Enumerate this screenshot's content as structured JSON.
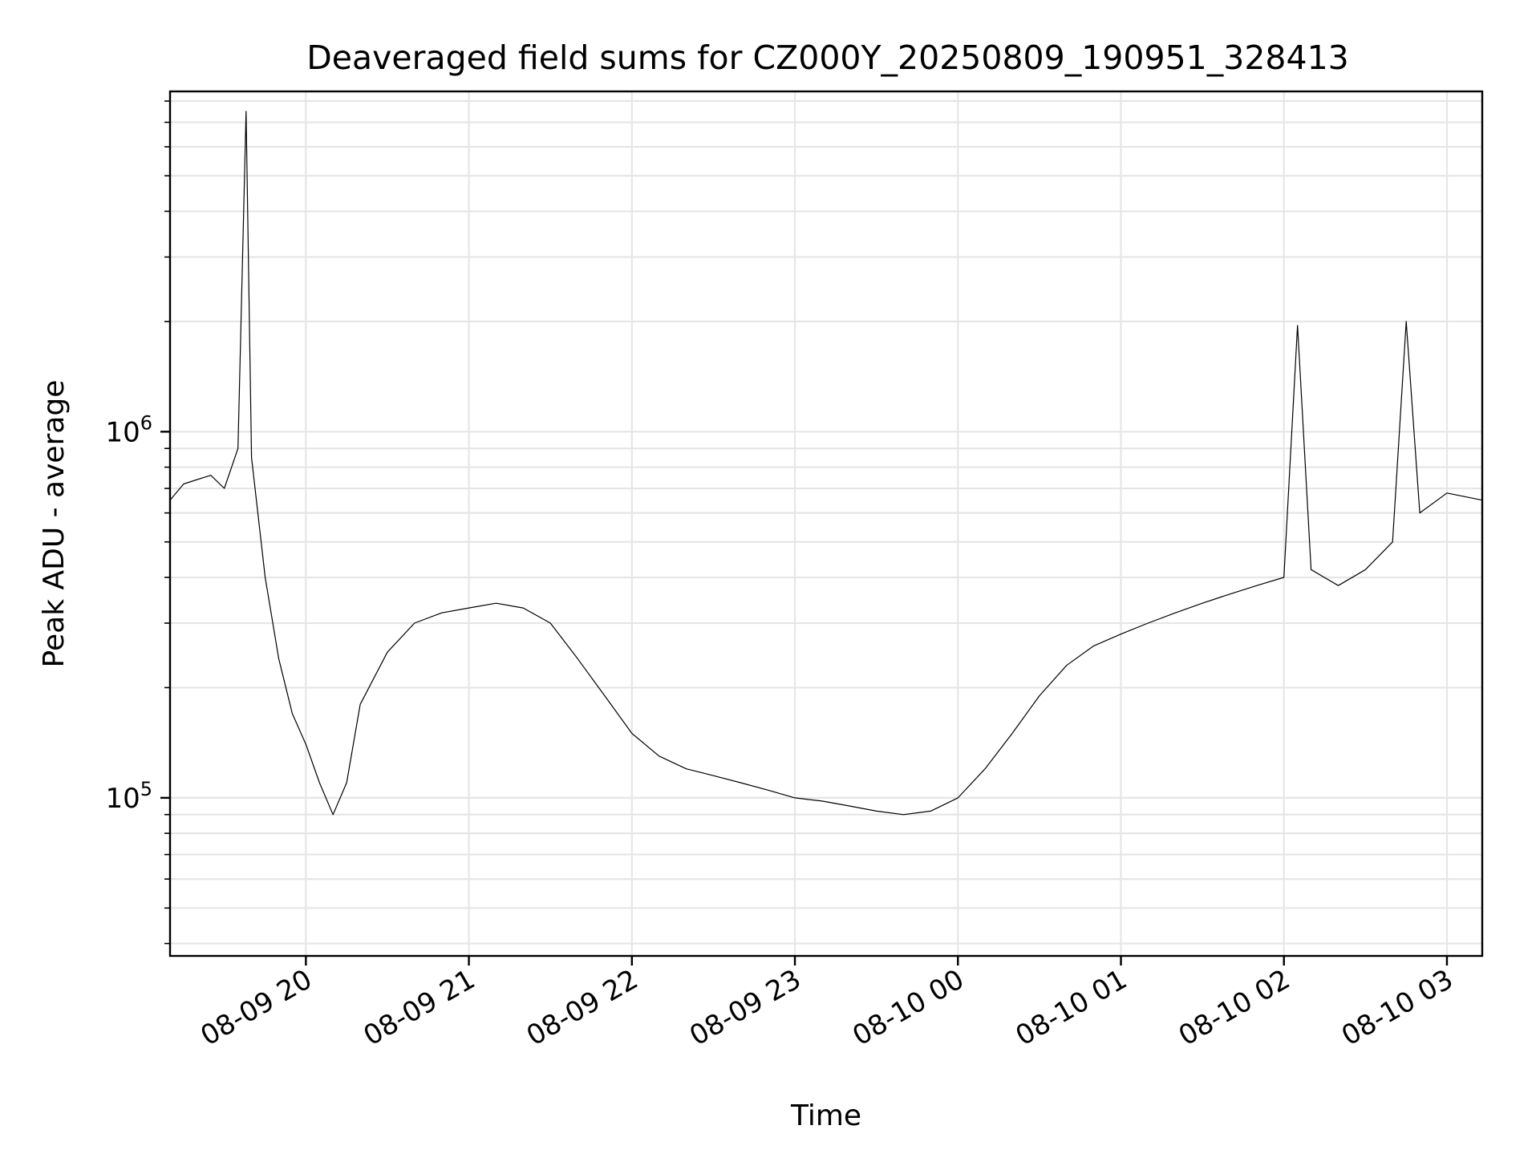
{
  "chart_data": {
    "type": "line",
    "title": "Deaveraged field sums for CZ000Y_20250809_190951_328413",
    "xlabel": "Time",
    "ylabel": "Peak ADU - average",
    "yscale": "log",
    "grid": true,
    "grid_minor_y": true,
    "line_color": "#000000",
    "xlim": [
      "2025-08-09 19:10",
      "2025-08-10 03:13"
    ],
    "ylim": [
      37000,
      8500000
    ],
    "x_ticks": [
      {
        "value": "2025-08-09 20:00",
        "label": "08-09 20"
      },
      {
        "value": "2025-08-09 21:00",
        "label": "08-09 21"
      },
      {
        "value": "2025-08-09 22:00",
        "label": "08-09 22"
      },
      {
        "value": "2025-08-09 23:00",
        "label": "08-09 23"
      },
      {
        "value": "2025-08-10 00:00",
        "label": "08-10 00"
      },
      {
        "value": "2025-08-10 01:00",
        "label": "08-10 01"
      },
      {
        "value": "2025-08-10 02:00",
        "label": "08-10 02"
      },
      {
        "value": "2025-08-10 03:00",
        "label": "08-10 03"
      }
    ],
    "y_ticks": [
      {
        "value": 100000,
        "base": "10",
        "exp": "5"
      },
      {
        "value": 1000000,
        "base": "10",
        "exp": "6"
      }
    ],
    "series": [
      {
        "points": [
          [
            "2025-08-09 19:10",
            650000
          ],
          [
            "2025-08-09 19:15",
            720000
          ],
          [
            "2025-08-09 19:20",
            740000
          ],
          [
            "2025-08-09 19:25",
            760000
          ],
          [
            "2025-08-09 19:30",
            700000
          ],
          [
            "2025-08-09 19:35",
            900000
          ],
          [
            "2025-08-09 19:38",
            7500000
          ],
          [
            "2025-08-09 19:40",
            850000
          ],
          [
            "2025-08-09 19:45",
            400000
          ],
          [
            "2025-08-09 19:50",
            240000
          ],
          [
            "2025-08-09 19:55",
            170000
          ],
          [
            "2025-08-09 20:00",
            140000
          ],
          [
            "2025-08-09 20:05",
            110000
          ],
          [
            "2025-08-09 20:10",
            90000
          ],
          [
            "2025-08-09 20:15",
            110000
          ],
          [
            "2025-08-09 20:20",
            180000
          ],
          [
            "2025-08-09 20:30",
            250000
          ],
          [
            "2025-08-09 20:40",
            300000
          ],
          [
            "2025-08-09 20:50",
            320000
          ],
          [
            "2025-08-09 21:00",
            330000
          ],
          [
            "2025-08-09 21:10",
            340000
          ],
          [
            "2025-08-09 21:20",
            330000
          ],
          [
            "2025-08-09 21:30",
            300000
          ],
          [
            "2025-08-09 21:40",
            240000
          ],
          [
            "2025-08-09 21:50",
            190000
          ],
          [
            "2025-08-09 22:00",
            150000
          ],
          [
            "2025-08-09 22:10",
            130000
          ],
          [
            "2025-08-09 22:20",
            120000
          ],
          [
            "2025-08-09 22:30",
            115000
          ],
          [
            "2025-08-09 22:40",
            110000
          ],
          [
            "2025-08-09 22:50",
            105000
          ],
          [
            "2025-08-09 23:00",
            100000
          ],
          [
            "2025-08-09 23:10",
            98000
          ],
          [
            "2025-08-09 23:20",
            95000
          ],
          [
            "2025-08-09 23:30",
            92000
          ],
          [
            "2025-08-09 23:40",
            90000
          ],
          [
            "2025-08-09 23:50",
            92000
          ],
          [
            "2025-08-10 00:00",
            100000
          ],
          [
            "2025-08-10 00:10",
            120000
          ],
          [
            "2025-08-10 00:20",
            150000
          ],
          [
            "2025-08-10 00:30",
            190000
          ],
          [
            "2025-08-10 00:40",
            230000
          ],
          [
            "2025-08-10 00:50",
            260000
          ],
          [
            "2025-08-10 01:00",
            280000
          ],
          [
            "2025-08-10 01:10",
            300000
          ],
          [
            "2025-08-10 01:20",
            320000
          ],
          [
            "2025-08-10 01:30",
            340000
          ],
          [
            "2025-08-10 01:40",
            360000
          ],
          [
            "2025-08-10 01:50",
            380000
          ],
          [
            "2025-08-10 02:00",
            400000
          ],
          [
            "2025-08-10 02:05",
            1950000
          ],
          [
            "2025-08-10 02:10",
            420000
          ],
          [
            "2025-08-10 02:20",
            380000
          ],
          [
            "2025-08-10 02:30",
            420000
          ],
          [
            "2025-08-10 02:40",
            500000
          ],
          [
            "2025-08-10 02:45",
            2000000
          ],
          [
            "2025-08-10 02:50",
            600000
          ],
          [
            "2025-08-10 03:00",
            680000
          ],
          [
            "2025-08-10 03:13",
            650000
          ]
        ]
      }
    ]
  }
}
